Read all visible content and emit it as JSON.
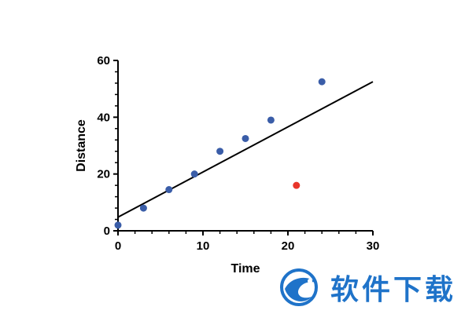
{
  "chart_data": {
    "type": "scatter",
    "xlabel": "Time",
    "ylabel": "Distance",
    "xlim": [
      0,
      30
    ],
    "ylim": [
      0,
      60
    ],
    "xticks": [
      0,
      10,
      20,
      30
    ],
    "yticks": [
      0,
      20,
      40,
      60
    ],
    "grid": false,
    "series": [
      {
        "points": [
          {
            "x": 0,
            "y": 2
          },
          {
            "x": 3,
            "y": 8
          },
          {
            "x": 6,
            "y": 14.5
          },
          {
            "x": 9,
            "y": 20
          },
          {
            "x": 12,
            "y": 28
          },
          {
            "x": 15,
            "y": 32.5
          },
          {
            "x": 18,
            "y": 39
          },
          {
            "x": 24,
            "y": 52.5
          }
        ],
        "color": "#3a5da8"
      },
      {
        "points": [
          {
            "x": 21,
            "y": 16
          }
        ],
        "color": "#e8352a"
      }
    ],
    "fit_line": {
      "x": [
        0,
        30
      ],
      "y": [
        4.8,
        52.5
      ],
      "color": "#000000"
    }
  },
  "watermark": {
    "text": "软件下载",
    "color": "#1f73c9",
    "logo_icon": "dragon-logo-icon"
  }
}
